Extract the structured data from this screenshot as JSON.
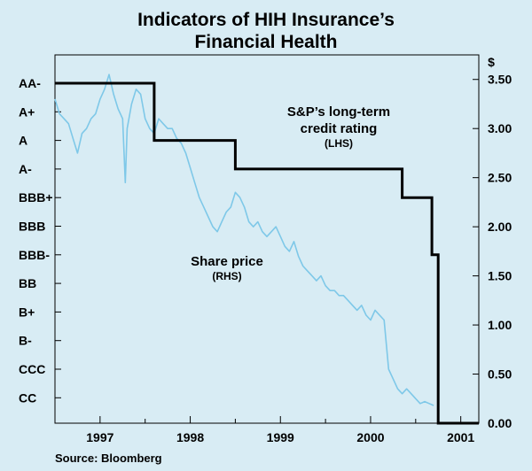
{
  "chart_data": {
    "type": "line",
    "title_lines": [
      "Indicators of HIH Insurance’s",
      "Financial Health"
    ],
    "right_axis_unit": "$",
    "x_tick_labels": [
      "1997",
      "1998",
      "1999",
      "2000",
      "2001"
    ],
    "x_tick_years": [
      1997.0,
      1998.0,
      1999.0,
      2000.0,
      2001.0
    ],
    "xlim": [
      1996.5,
      2001.2
    ],
    "left_axis": {
      "ticks": [
        "AA-",
        "A+",
        "A",
        "A-",
        "BBB+",
        "BBB",
        "BBB-",
        "BB",
        "B+",
        "B-",
        "CCC",
        "CC"
      ],
      "label": "LHS"
    },
    "right_axis": {
      "ticks": [
        "3.50",
        "3.00",
        "2.50",
        "2.00",
        "1.50",
        "1.00",
        "0.50",
        "0.00"
      ],
      "ylim": [
        0,
        3.75
      ],
      "label": "RHS"
    },
    "series": [
      {
        "name": "S&P’s long-term credit rating",
        "axis": "left",
        "steps": [
          {
            "x": 1996.5,
            "rating": "AA-"
          },
          {
            "x": 1997.6,
            "rating": "A"
          },
          {
            "x": 1998.5,
            "rating": "A-"
          },
          {
            "x": 2000.35,
            "rating": "BBB+"
          },
          {
            "x": 2000.68,
            "rating": "BBB-"
          },
          {
            "x": 2000.75,
            "rating": "below CC"
          },
          {
            "x": 2001.2,
            "rating": "below CC"
          }
        ]
      },
      {
        "name": "Share price",
        "axis": "right",
        "x": [
          1996.5,
          1996.55,
          1996.6,
          1996.65,
          1996.7,
          1996.75,
          1996.8,
          1996.85,
          1996.9,
          1996.95,
          1997.0,
          1997.05,
          1997.1,
          1997.15,
          1997.2,
          1997.25,
          1997.28,
          1997.3,
          1997.35,
          1997.4,
          1997.45,
          1997.5,
          1997.55,
          1997.6,
          1997.65,
          1997.7,
          1997.75,
          1997.8,
          1997.85,
          1997.9,
          1997.95,
          1998.0,
          1998.05,
          1998.1,
          1998.15,
          1998.2,
          1998.25,
          1998.3,
          1998.35,
          1998.4,
          1998.45,
          1998.5,
          1998.55,
          1998.6,
          1998.65,
          1998.7,
          1998.75,
          1998.8,
          1998.85,
          1998.9,
          1998.95,
          1999.0,
          1999.05,
          1999.1,
          1999.15,
          1999.2,
          1999.25,
          1999.3,
          1999.35,
          1999.4,
          1999.45,
          1999.5,
          1999.55,
          1999.6,
          1999.65,
          1999.7,
          1999.75,
          1999.8,
          1999.85,
          1999.9,
          1999.95,
          2000.0,
          2000.05,
          2000.1,
          2000.15,
          2000.2,
          2000.25,
          2000.3,
          2000.35,
          2000.4,
          2000.45,
          2000.5,
          2000.55,
          2000.6,
          2000.65,
          2000.7
        ],
        "values": [
          3.3,
          3.15,
          3.1,
          3.05,
          2.9,
          2.75,
          2.95,
          3.0,
          3.1,
          3.15,
          3.3,
          3.4,
          3.55,
          3.35,
          3.2,
          3.1,
          2.45,
          3.0,
          3.25,
          3.4,
          3.35,
          3.1,
          3.0,
          2.95,
          3.1,
          3.05,
          3.0,
          3.0,
          2.9,
          2.85,
          2.75,
          2.6,
          2.45,
          2.3,
          2.2,
          2.1,
          2.0,
          1.95,
          2.05,
          2.15,
          2.2,
          2.35,
          2.3,
          2.2,
          2.05,
          2.0,
          2.05,
          1.95,
          1.9,
          1.95,
          2.0,
          1.9,
          1.8,
          1.75,
          1.85,
          1.7,
          1.6,
          1.55,
          1.5,
          1.45,
          1.5,
          1.4,
          1.35,
          1.35,
          1.3,
          1.3,
          1.25,
          1.2,
          1.15,
          1.2,
          1.1,
          1.05,
          1.15,
          1.1,
          1.05,
          0.55,
          0.45,
          0.35,
          0.3,
          0.35,
          0.3,
          0.25,
          0.2,
          0.22,
          0.2,
          0.18
        ]
      }
    ],
    "annotations": {
      "rating_label": [
        "S&P’s long-term",
        "credit rating",
        "(LHS)"
      ],
      "price_label": [
        "Share price",
        "(RHS)"
      ]
    },
    "source": "Source: Bloomberg",
    "colors": {
      "background": "#d8ecf4",
      "rating_line": "#000000",
      "price_line": "#7ec8e8",
      "axis": "#000000"
    }
  }
}
